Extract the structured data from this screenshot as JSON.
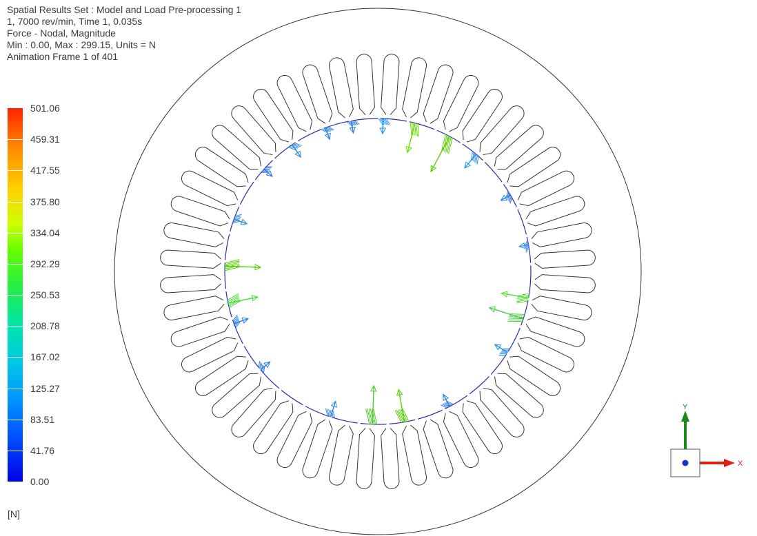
{
  "info": {
    "line1": "Spatial Results Set : Model and Load Pre-processing 1",
    "line2": "1, 7000 rev/min, Time 1, 0.035s",
    "line3": "Force - Nodal, Magnitude",
    "line4": "Min : 0.00, Max : 299.15, Units = N",
    "line5": "Animation Frame 1 of 401"
  },
  "legend": {
    "labels": [
      "501.06",
      "459.31",
      "417.55",
      "375.80",
      "334.04",
      "292.29",
      "250.53",
      "208.78",
      "167.02",
      "125.27",
      "83.51",
      "41.76",
      "0.00"
    ],
    "units": "[N]"
  },
  "model": {
    "slot_count": 48,
    "stator_outline_color": "#333333",
    "bore_color": "#2a2aa8"
  },
  "triad": {
    "x_label": "X",
    "y_label": "Y",
    "x_color": "#dd2211",
    "y_color": "#1a8a1a",
    "origin_color": "#1a36c8"
  }
}
